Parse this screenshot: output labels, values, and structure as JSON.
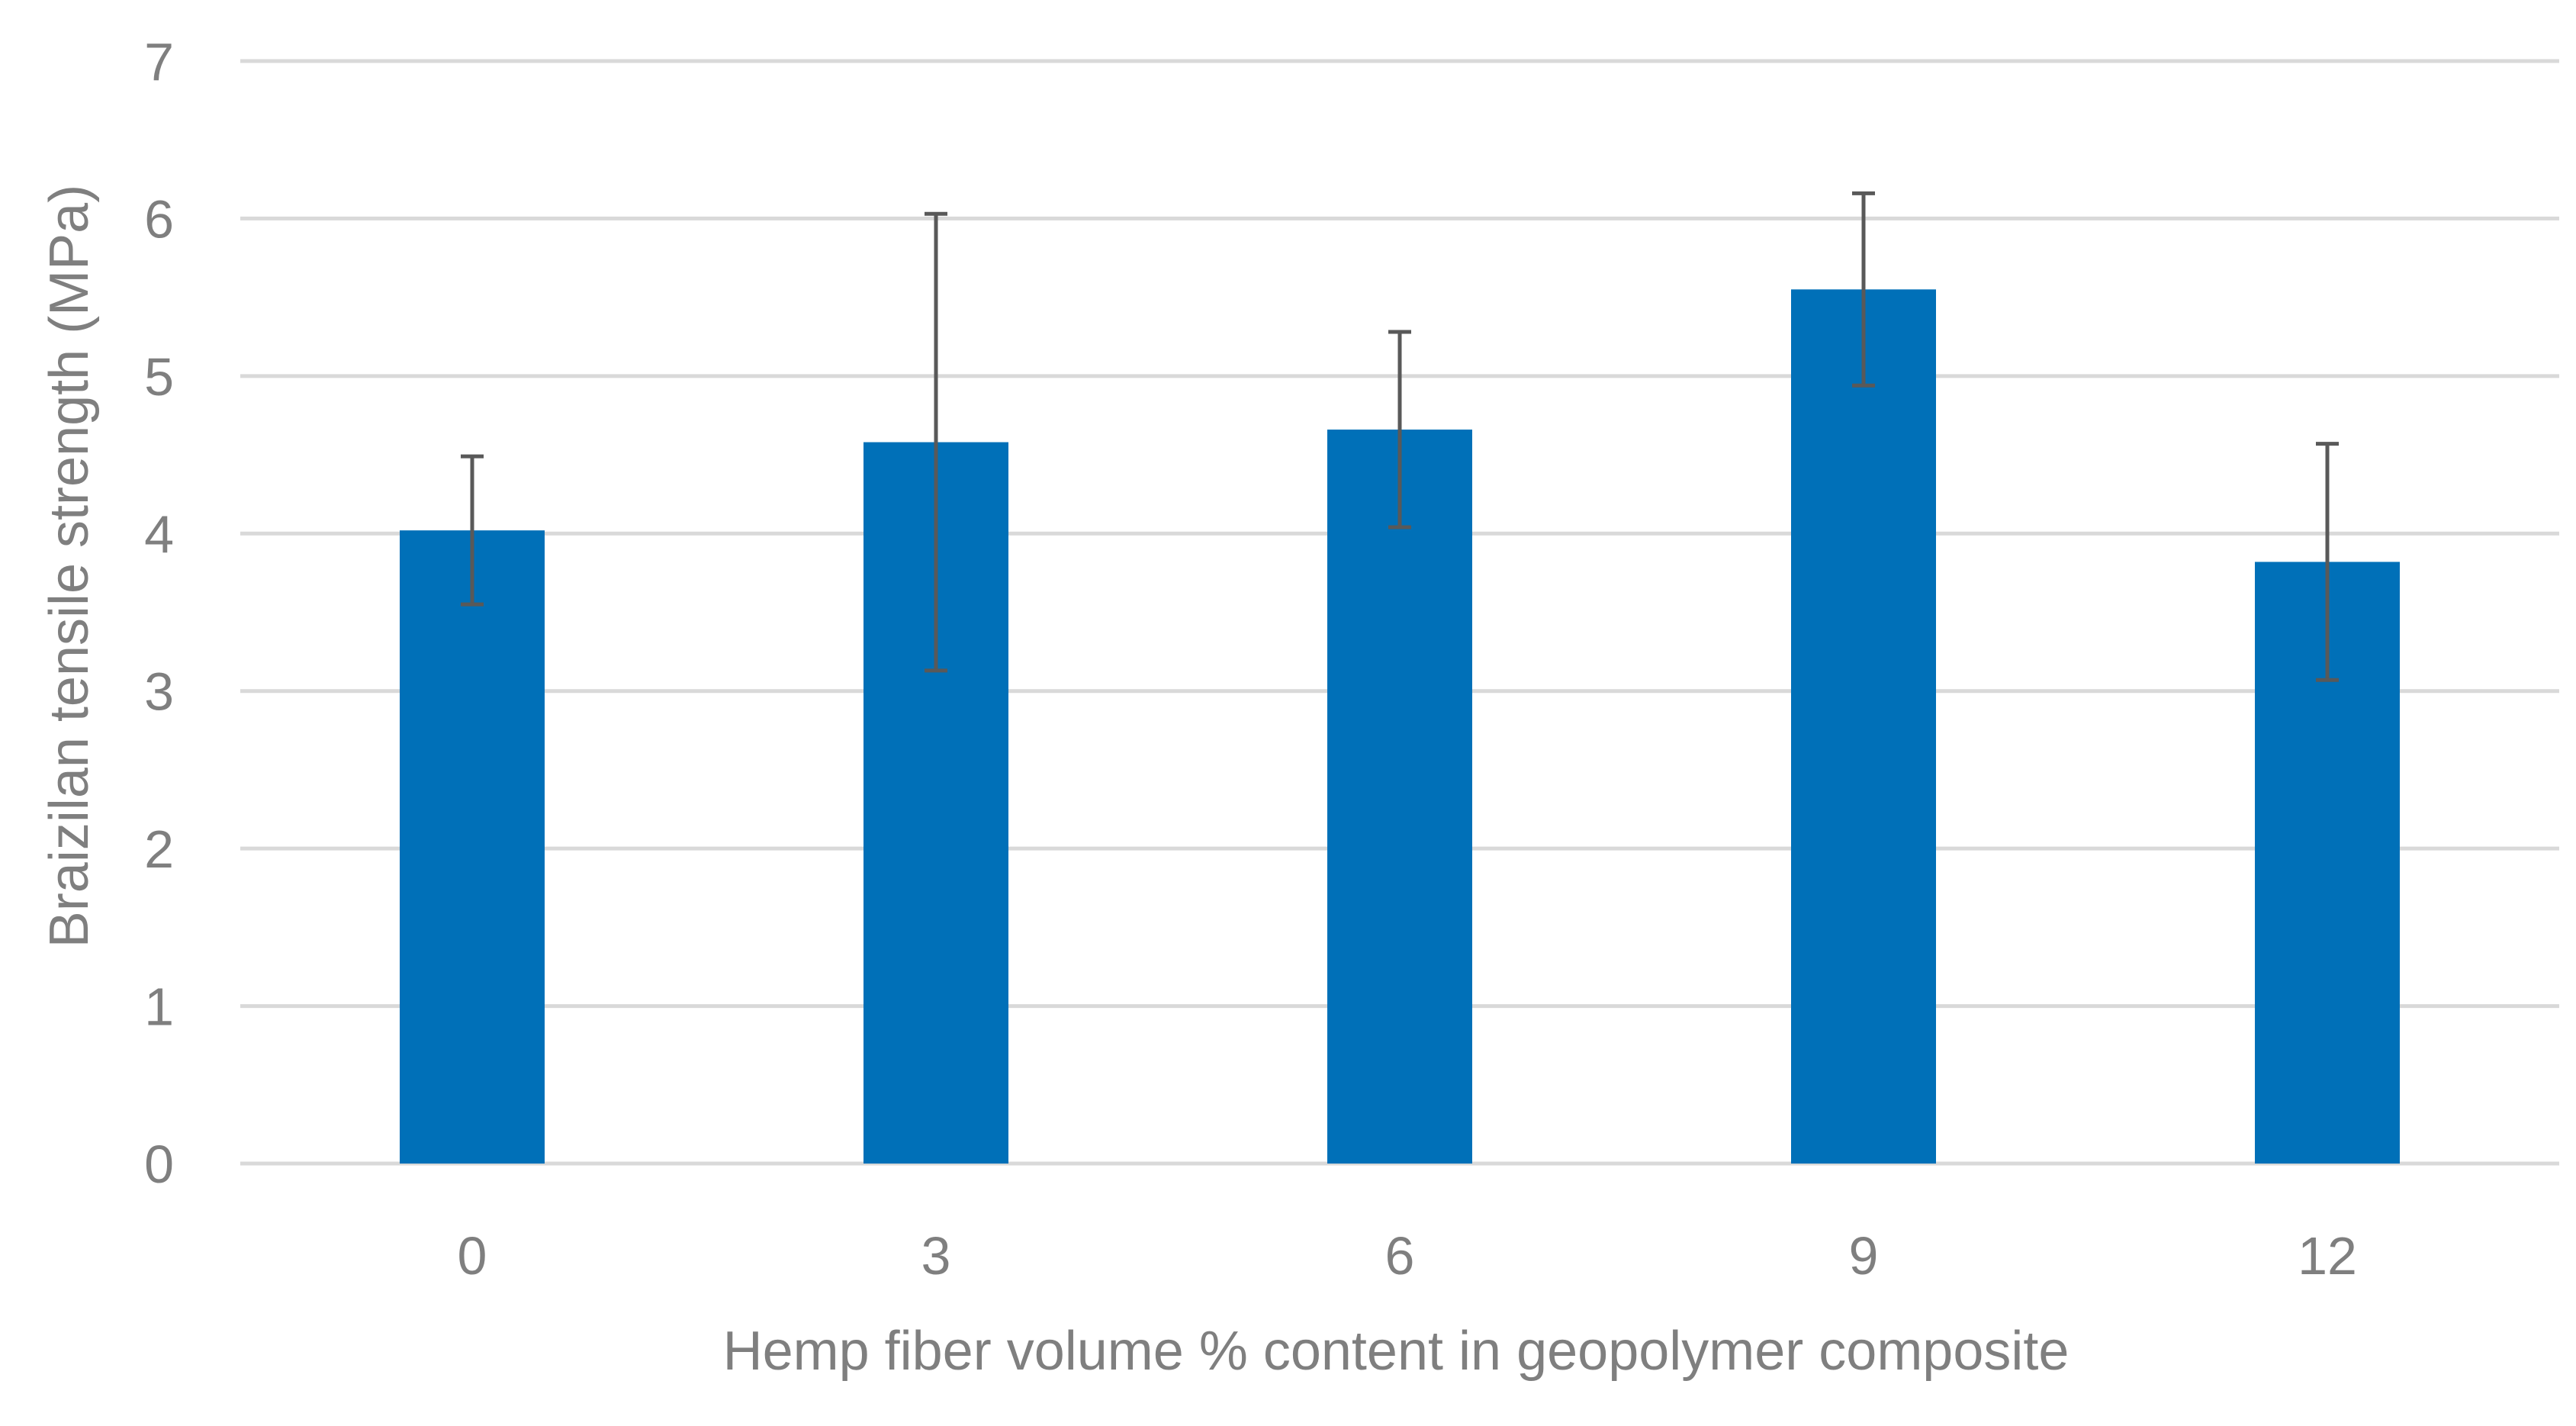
{
  "chart_data": {
    "type": "bar",
    "title": "",
    "xlabel": "Hemp fiber volume %  content  in geopolymer composite",
    "ylabel": "Braizilan tensile strength (MPa)",
    "categories": [
      "0",
      "3",
      "6",
      "9",
      "12"
    ],
    "series": [
      {
        "values": [
          4.02,
          4.58,
          4.66,
          5.55,
          3.82
        ],
        "error_plus": [
          0.47,
          1.45,
          0.62,
          0.61,
          0.75
        ],
        "error_minus": [
          0.47,
          1.45,
          0.62,
          0.61,
          0.75
        ],
        "color": "#0070b8"
      }
    ],
    "ylim": [
      0,
      7
    ],
    "yticks": [
      "0",
      "1",
      "2",
      "3",
      "4",
      "5",
      "6",
      "7"
    ],
    "grid": true,
    "legend": "none",
    "colors": {
      "bar": "#0070b8",
      "error_bar": "#595959",
      "grid": "#d9d9d9",
      "text": "#7f7f7f"
    }
  }
}
